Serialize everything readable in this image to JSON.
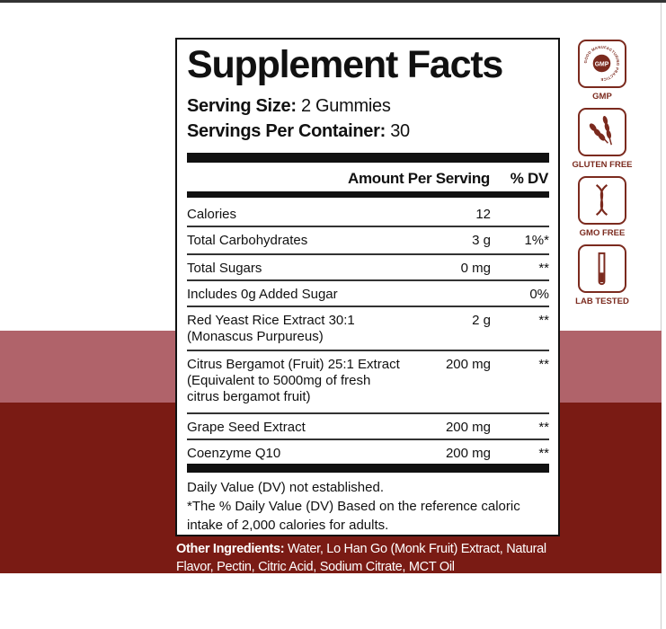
{
  "title": "Supplement Facts",
  "serving_size": {
    "label": "Serving Size:",
    "value": "2 Gummies"
  },
  "servings_per_container": {
    "label": "Servings Per Container:",
    "value": "30"
  },
  "headers": {
    "amount": "Amount Per Serving",
    "dv": "% DV"
  },
  "rows": [
    {
      "name": "Calories",
      "amount": "12",
      "dv": ""
    },
    {
      "name": "Total Carbohydrates",
      "amount": "3 g",
      "dv": "1%*"
    },
    {
      "name": "Total Sugars",
      "amount": "0 mg",
      "dv": "**"
    },
    {
      "name": "Includes 0g Added Sugar",
      "amount": "",
      "dv": "0%"
    },
    {
      "name": "Red Yeast Rice Extract 30:1\n(Monascus Purpureus)",
      "amount": "2 g",
      "dv": "**"
    },
    {
      "name": "Citrus Bergamot (Fruit) 25:1 Extract\n(Equivalent to 5000mg of fresh\ncitrus bergamot fruit)",
      "amount": "200 mg",
      "dv": "**"
    },
    {
      "name": "Grape Seed Extract",
      "amount": "200 mg",
      "dv": "**"
    },
    {
      "name": "Coenzyme Q10",
      "amount": "200 mg",
      "dv": "**"
    }
  ],
  "footnotes": [
    "Daily Value (DV) not established.",
    "*The % Daily Value (DV) Based on the reference caloric intake of 2,000 calories for adults."
  ],
  "other_ingredients": {
    "label": "Other Ingredients:",
    "value": " Water, Lo Han Go (Monk Fruit) Extract, Natural Flavor, Pectin, Citric Acid, Sodium Citrate, MCT Oil"
  },
  "badges": [
    {
      "label": "GMP",
      "icon": "gmp-seal-icon",
      "seal_text": "GMP",
      "ring_text": "GOOD MANUFACTURING PRACTICE"
    },
    {
      "label": "GLUTEN FREE",
      "icon": "wheat-icon"
    },
    {
      "label": "GMO FREE",
      "icon": "dna-icon"
    },
    {
      "label": "LAB TESTED",
      "icon": "test-tube-icon"
    }
  ],
  "colors": {
    "band_light": "#b0636a",
    "band_dark": "#7a1b14",
    "badge": "#7b2a1e"
  }
}
